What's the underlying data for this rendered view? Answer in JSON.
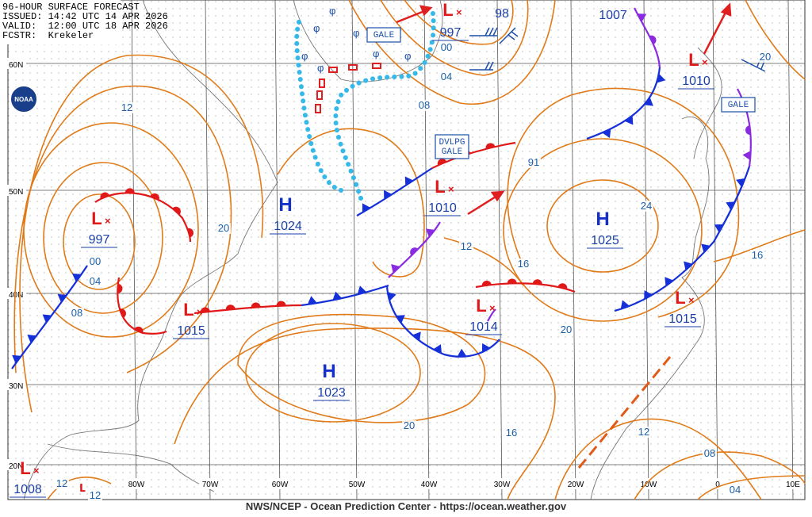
{
  "header": {
    "lines": [
      "96-HOUR SURFACE FORECAST",
      "ISSUED: 14:42 UTC 14 APR 2026",
      "VALID:  12:00 UTC 18 APR 2026",
      "FCSTR:  Krekeler"
    ]
  },
  "logo": "NOAA",
  "latitudes": [
    "60N",
    "50N",
    "40N",
    "30N",
    "20N"
  ],
  "longitudes": [
    "80W",
    "70W",
    "60W",
    "50W",
    "40W",
    "30W",
    "20W",
    "10W",
    "0",
    "10E"
  ],
  "systems": [
    {
      "kind": "H",
      "value": "1024"
    },
    {
      "kind": "H",
      "value": "1025"
    },
    {
      "kind": "H",
      "value": "1023"
    },
    {
      "kind": "L",
      "value": "997"
    },
    {
      "kind": "L",
      "value": "1015"
    },
    {
      "kind": "L",
      "value": "1010"
    },
    {
      "kind": "L",
      "value": "1014"
    },
    {
      "kind": "L",
      "value": "1015"
    },
    {
      "kind": "L",
      "value": "1010"
    },
    {
      "kind": "L",
      "value": "997"
    },
    {
      "kind": "L",
      "value": "1008"
    }
  ],
  "extra_pressures": [
    "98",
    "1007"
  ],
  "isobar_labels": [
    "12",
    "00",
    "04",
    "08",
    "20",
    "08",
    "04",
    "00",
    "12",
    "91",
    "16",
    "20",
    "24",
    "16",
    "20",
    "20",
    "16",
    "12",
    "08",
    "04",
    "12",
    "12"
  ],
  "warnings": [
    {
      "lines": [
        "GALE"
      ]
    },
    {
      "lines": [
        "DVLPG",
        "GALE"
      ]
    },
    {
      "lines": [
        "GALE"
      ]
    }
  ],
  "footer": "NWS/NCEP - Ocean Prediction Center - https://ocean.weather.gov"
}
